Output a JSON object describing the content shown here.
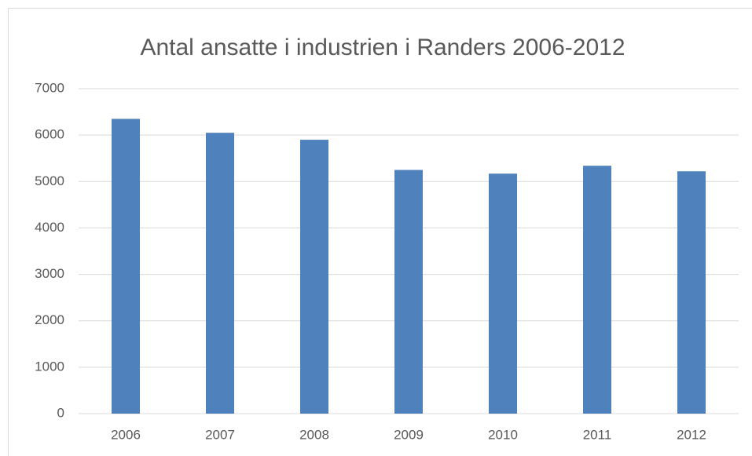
{
  "chart_data": {
    "type": "bar",
    "title": "Antal ansatte i industrien i Randers 2006-2012",
    "categories": [
      "2006",
      "2007",
      "2008",
      "2009",
      "2010",
      "2011",
      "2012"
    ],
    "values": [
      6350,
      6050,
      5900,
      5250,
      5170,
      5340,
      5220
    ],
    "color": "#4f81bd",
    "ylim": [
      0,
      7000
    ],
    "yticks": [
      0,
      1000,
      2000,
      3000,
      4000,
      5000,
      6000,
      7000
    ],
    "grid": true
  }
}
